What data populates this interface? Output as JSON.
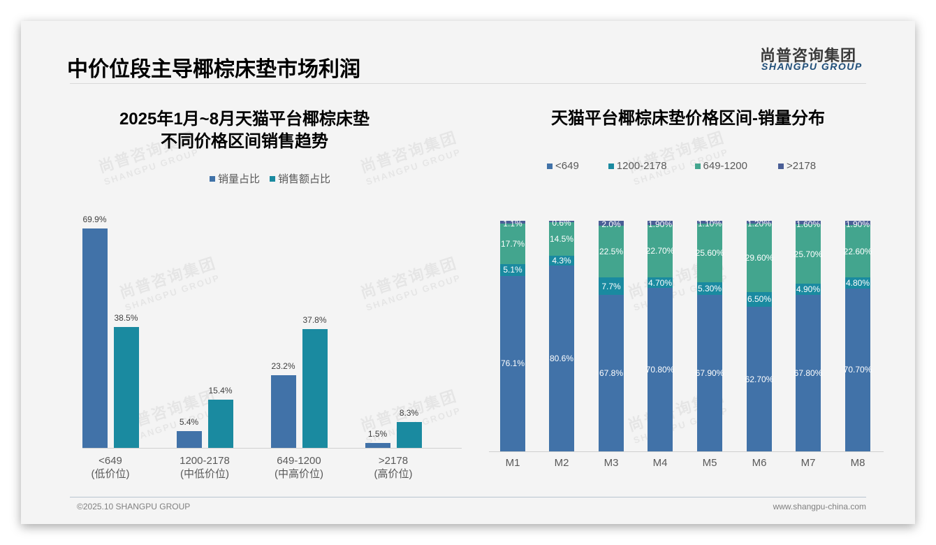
{
  "header": {
    "title": "中价位段主导椰棕床垫市场利润",
    "logo_cn": "尚普咨询集团",
    "logo_en": "SHANGPU GROUP"
  },
  "watermark": {
    "cn": "尚普咨询集团",
    "en": "SHANGPU GROUP"
  },
  "footer": {
    "copyright": "©2025.10 SHANGPU GROUP",
    "website": "www.shangpu-china.com"
  },
  "colors": {
    "blue": "#4172a8",
    "teal": "#1a8aa0",
    "green": "#43a58e",
    "navy": "#4a5e96"
  },
  "chart_data": [
    {
      "type": "bar",
      "title": "2025年1月~8月天猫平台椰棕床垫 不同价格区间销售趋势",
      "title_line1": "2025年1月~8月天猫平台椰棕床垫",
      "title_line2": "不同价格区间销售趋势",
      "categories": [
        "<649",
        "1200-2178",
        "649-1200",
        ">2178"
      ],
      "category_sublabels": [
        "(低价位)",
        "(中低价位)",
        "(中高价位)",
        "(高价位)"
      ],
      "series": [
        {
          "name": "销量占比",
          "values": [
            69.9,
            5.4,
            23.2,
            1.5
          ],
          "labels": [
            "69.9%",
            "5.4%",
            "23.2%",
            "1.5%"
          ],
          "color": "#4172a8"
        },
        {
          "name": "销售额占比",
          "values": [
            38.5,
            15.4,
            37.8,
            8.3
          ],
          "labels": [
            "38.5%",
            "15.4%",
            "37.8%",
            "8.3%"
          ],
          "color": "#1a8aa0"
        }
      ],
      "xlabel": "",
      "ylabel": "",
      "ylim": [
        0,
        75
      ],
      "grid": false,
      "legend_position": "top"
    },
    {
      "type": "bar",
      "stacked": true,
      "title": "天猫平台椰棕床垫价格区间-销量分布",
      "categories": [
        "M1",
        "M2",
        "M3",
        "M4",
        "M5",
        "M6",
        "M7",
        "M8"
      ],
      "legend": [
        "<649",
        "1200-2178",
        "649-1200",
        ">2178"
      ],
      "series": [
        {
          "name": "<649",
          "values": [
            76.1,
            80.6,
            67.8,
            70.8,
            67.9,
            62.7,
            67.8,
            70.7
          ],
          "labels": [
            "76.1%",
            "80.6%",
            "67.8%",
            "70.80%",
            "67.90%",
            "62.70%",
            "67.80%",
            "70.70%"
          ],
          "color": "#4172a8"
        },
        {
          "name": "1200-2178",
          "values": [
            5.1,
            4.3,
            7.7,
            4.7,
            5.3,
            6.5,
            4.9,
            4.8
          ],
          "labels": [
            "5.1%",
            "4.3%",
            "7.7%",
            "4.70%",
            "5.30%",
            "6.50%",
            "4.90%",
            "4.80%"
          ],
          "color": "#1a8aa0"
        },
        {
          "name": "649-1200",
          "values": [
            17.7,
            14.5,
            22.5,
            22.7,
            25.6,
            29.6,
            25.7,
            22.6
          ],
          "labels": [
            "17.7%",
            "14.5%",
            "22.5%",
            "22.70%",
            "25.60%",
            "29.60%",
            "25.70%",
            "22.60%"
          ],
          "color": "#43a58e"
        },
        {
          "name": ">2178",
          "values": [
            1.1,
            0.6,
            2.0,
            1.9,
            1.1,
            1.2,
            1.6,
            1.9
          ],
          "labels": [
            "1.1%",
            "0.6%",
            "2.0%",
            "1.90%",
            "1.10%",
            "1.20%",
            "1.60%",
            "1.90%"
          ],
          "color": "#4a5e96"
        }
      ],
      "xlabel": "",
      "ylabel": "",
      "ylim": [
        0,
        100
      ],
      "grid": false,
      "legend_position": "top"
    }
  ]
}
